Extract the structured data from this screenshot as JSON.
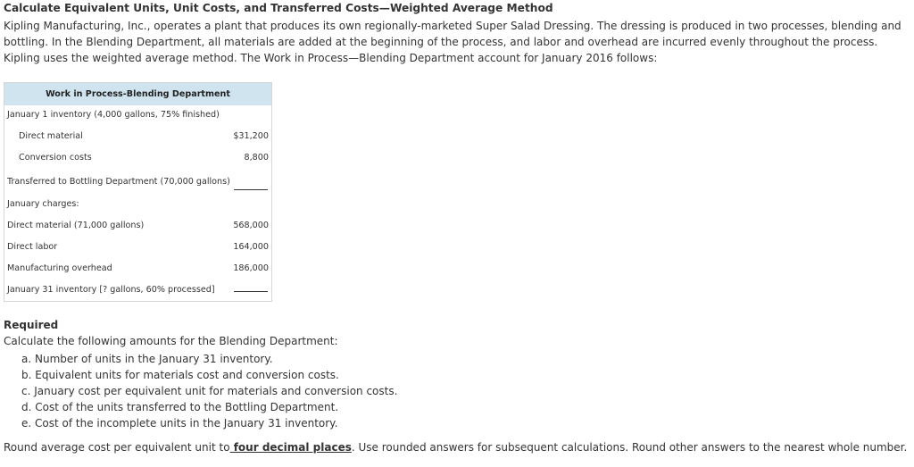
{
  "title": "Calculate Equivalent Units, Unit Costs, and Transferred Costs—Weighted Average Method",
  "intro": "Kipling Manufacturing, Inc., operates a plant that produces its own regionally-marketed Super Salad Dressing. The dressing is produced in two processes, blending and bottling. In the Blending Department, all materials are added at the beginning of the process, and labor and overhead are incurred evenly throughout the process. Kipling uses the weighted average method. The Work in Process—Blending Department account for January 2016 follows:",
  "table": {
    "header": "Work in Process-Blending Department",
    "rows": [
      {
        "label": "January 1 inventory (4,000 gallons, 75% finished)",
        "amount": ""
      },
      {
        "label": "Direct material",
        "amount": "$31,200"
      },
      {
        "label": "Conversion costs",
        "amount": "8,800"
      },
      {
        "label": "Transferred to Bottling Department (70,000 gallons)",
        "amount": ""
      },
      {
        "label": "January charges:",
        "amount": ""
      },
      {
        "label": "Direct material (71,000 gallons)",
        "amount": "568,000"
      },
      {
        "label": "Direct labor",
        "amount": "164,000"
      },
      {
        "label": "Manufacturing overhead",
        "amount": "186,000"
      },
      {
        "label": "January 31 inventory [? gallons, 60% processed]",
        "amount": ""
      }
    ]
  },
  "required": {
    "heading": "Required",
    "intro": "Calculate the following amounts for the Blending Department:",
    "items": [
      "a. Number of units in the January 31 inventory.",
      "b. Equivalent units for materials cost and conversion costs.",
      "c. January cost per equivalent unit for materials and conversion costs.",
      "d. Cost of the units transferred to the Bottling Department.",
      "e. Cost of the incomplete units in the January 31 inventory."
    ]
  },
  "rounding": {
    "before": "Round average cost per equivalent unit to",
    "emphasis": " four decimal places",
    "after": ". Use rounded answers for subsequent calculations. Round other answers to the nearest whole number."
  }
}
